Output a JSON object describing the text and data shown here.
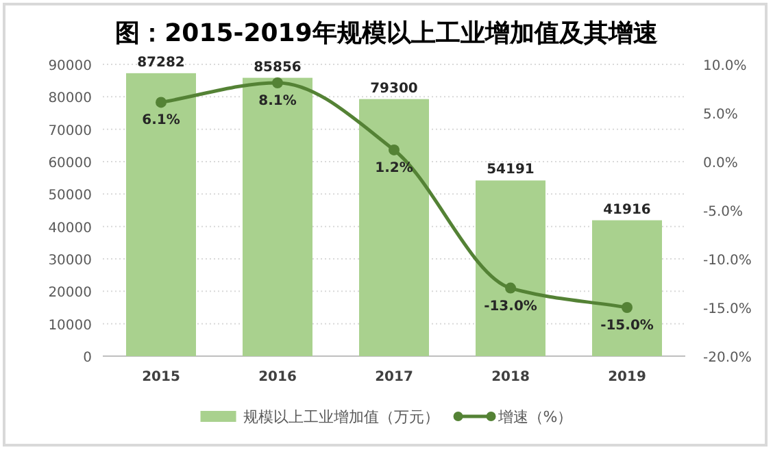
{
  "chart_data": {
    "type": "bar",
    "title": "图：2015-2019年规模以上工业增加值及其增速",
    "categories": [
      "2015",
      "2016",
      "2017",
      "2018",
      "2019"
    ],
    "series": [
      {
        "name": "规模以上工业增加值（万元）",
        "color": "#a9d18e",
        "values": [
          87282,
          85856,
          79300,
          54191,
          41916
        ],
        "value_labels": [
          "87282",
          "85856",
          "79300",
          "54191",
          "41916"
        ]
      },
      {
        "name": "增速（%）",
        "type": "line",
        "axis": "y2",
        "color": "#548235",
        "marker": "circle",
        "values": [
          6.1,
          8.1,
          1.2,
          -13.0,
          -15.0
        ],
        "value_labels": [
          "6.1%",
          "8.1%",
          "1.2%",
          "-13.0%",
          "-15.0%"
        ]
      }
    ],
    "ylim": [
      0,
      90000
    ],
    "yticks": [
      0,
      10000,
      20000,
      30000,
      40000,
      50000,
      60000,
      70000,
      80000,
      90000
    ],
    "y2lim": [
      -20,
      10
    ],
    "y2ticks": [
      {
        "value": -20,
        "label": "-20.0%"
      },
      {
        "value": -15,
        "label": "-15.0%"
      },
      {
        "value": -10,
        "label": "-10.0%"
      },
      {
        "value": -5,
        "label": "-5.0%"
      },
      {
        "value": 0,
        "label": "0.0%"
      },
      {
        "value": 5,
        "label": "5.0%"
      },
      {
        "value": 10,
        "label": "10.0%"
      }
    ],
    "grid": "y",
    "legend": "bottom"
  }
}
